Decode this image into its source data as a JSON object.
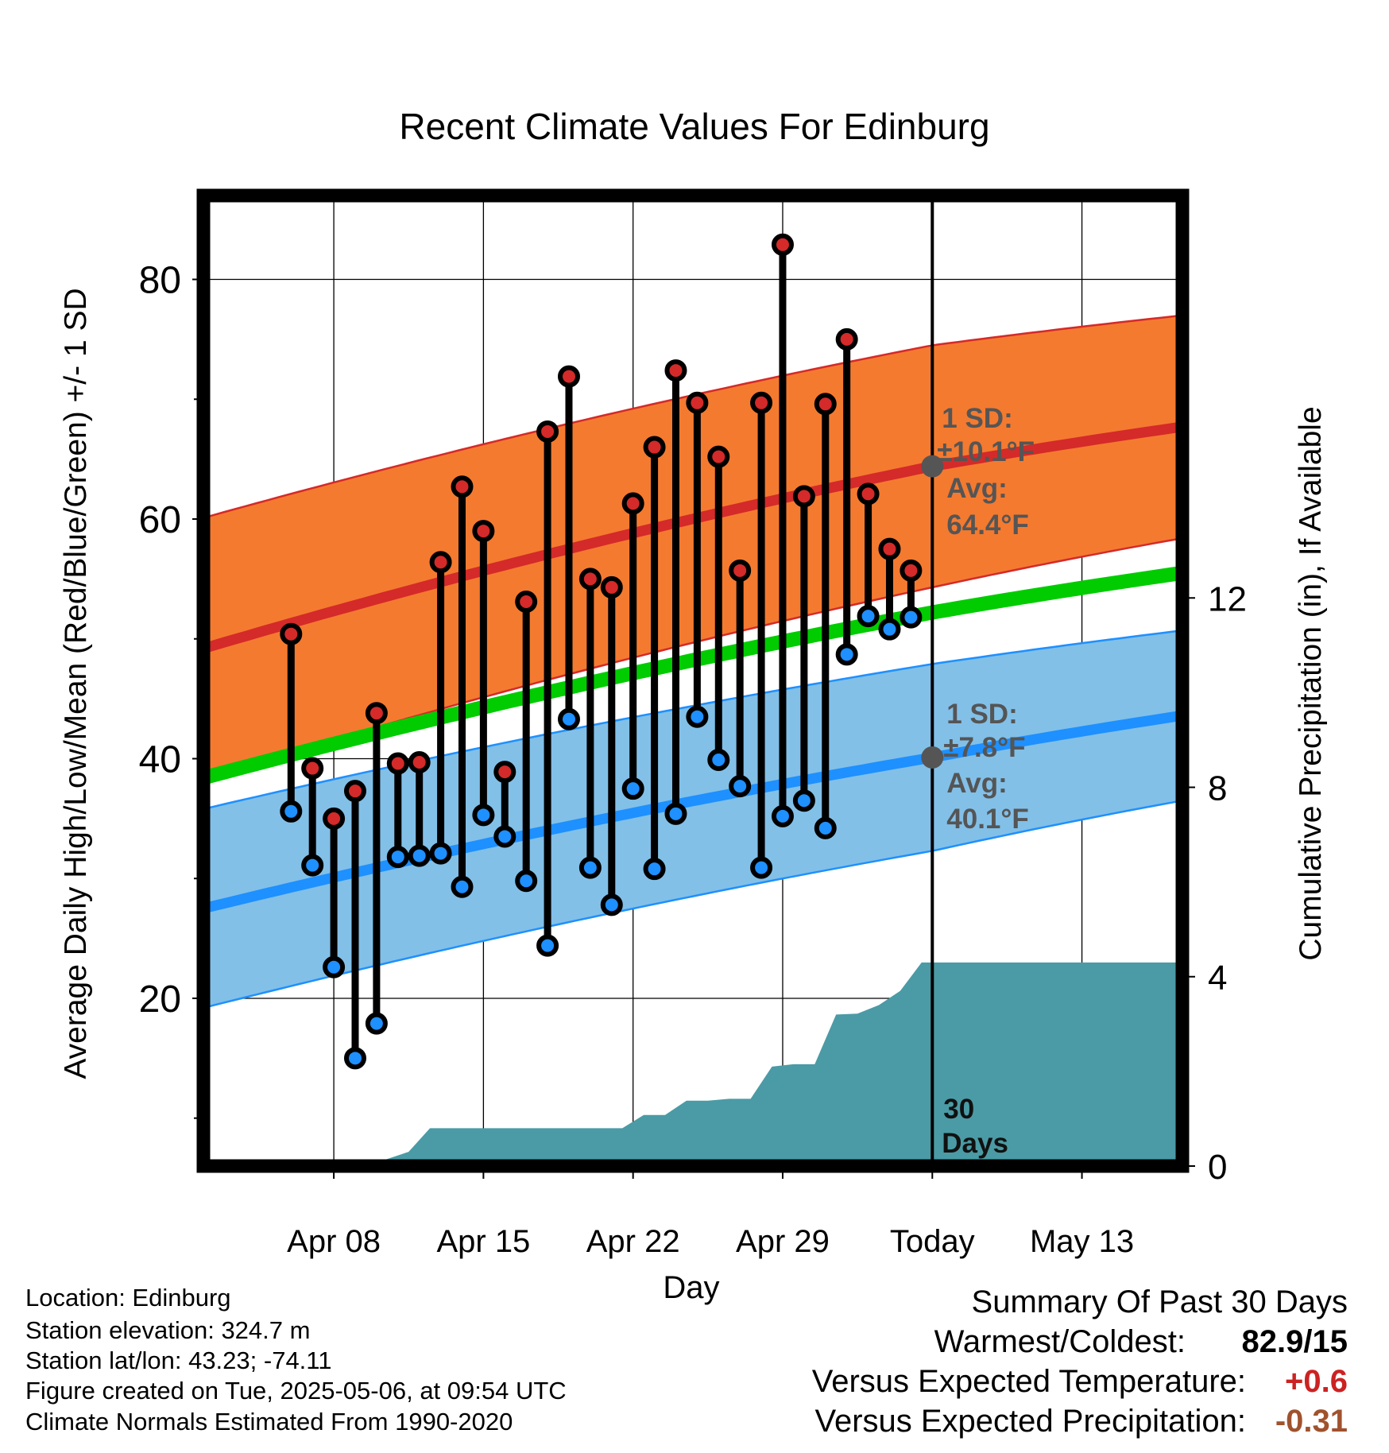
{
  "chart_data": {
    "type": "line",
    "title": "Recent Climate Values For Edinburg",
    "xlabel": "Day",
    "ylabel": "Average Daily High/Low/Mean (Red/Blue/Green) +/- 1 SD",
    "y2label": "Cumulative Precipitation (in), If Available",
    "ylim": [
      6,
      87
    ],
    "y2lim": [
      0,
      20.5
    ],
    "y_ticks": [
      20,
      40,
      60,
      80
    ],
    "y2_ticks": [
      0,
      4,
      8,
      12
    ],
    "x_range_days": [
      -34.1,
      11.7
    ],
    "x_ticks": [
      {
        "day": -28,
        "label": "Apr 08"
      },
      {
        "day": -21,
        "label": "Apr 15"
      },
      {
        "day": -14,
        "label": "Apr 22"
      },
      {
        "day": -7,
        "label": "Apr 29"
      },
      {
        "day": 0,
        "label": "Today"
      },
      {
        "day": 7,
        "label": "May 13"
      }
    ],
    "today_line_day": 0,
    "normals": {
      "x_start": -34.1,
      "x_today": 0,
      "x_end": 11.7,
      "high_mean": [
        49.2,
        64.4,
        67.7
      ],
      "high_sd": [
        10.9,
        10.1,
        9.3
      ],
      "low_mean": [
        27.5,
        40.1,
        43.6
      ],
      "low_sd": [
        8.3,
        7.8,
        7.1
      ],
      "avg_mean": [
        38.4,
        52.2,
        55.5
      ]
    },
    "daily": {
      "days": [
        -30,
        -29,
        -28,
        -27,
        -26,
        -25,
        -24,
        -23,
        -22,
        -21,
        -20,
        -19,
        -18,
        -17,
        -16,
        -15,
        -14,
        -13,
        -12,
        -11,
        -10,
        -9,
        -8,
        -7,
        -6,
        -5,
        -4,
        -3,
        -2,
        -1
      ],
      "highs": [
        50.4,
        39.2,
        35.0,
        37.3,
        43.8,
        39.6,
        39.7,
        56.4,
        62.7,
        59.0,
        38.9,
        53.1,
        67.3,
        71.9,
        55.0,
        54.3,
        61.3,
        66.0,
        72.4,
        69.7,
        65.2,
        55.7,
        69.7,
        82.9,
        61.9,
        69.6,
        75.0,
        62.1,
        57.5,
        55.7
      ],
      "lows": [
        35.6,
        31.1,
        22.6,
        15.0,
        17.9,
        31.8,
        31.9,
        32.1,
        29.3,
        35.3,
        33.5,
        29.8,
        24.4,
        43.3,
        30.9,
        27.8,
        37.5,
        30.8,
        35.4,
        43.5,
        39.9,
        37.7,
        30.9,
        35.2,
        36.5,
        34.2,
        48.7,
        51.9,
        50.8,
        51.8
      ]
    },
    "precipitation": {
      "days": [
        -34.1,
        -26.5,
        -25.5,
        -24.5,
        -23.5,
        -14.5,
        -13.5,
        -12.5,
        -11.5,
        -10.5,
        -9.5,
        -8.5,
        -7.5,
        -6.5,
        -5.5,
        -4.5,
        -3.5,
        -2.5,
        -1.5,
        -0.5,
        0,
        11.7
      ],
      "cumulative_in": [
        0,
        0,
        0.15,
        0.3,
        0.8,
        0.8,
        1.08,
        1.08,
        1.38,
        1.38,
        1.42,
        1.42,
        2.1,
        2.15,
        2.15,
        3.2,
        3.22,
        3.4,
        3.7,
        4.3,
        4.3,
        4.3
      ]
    },
    "annotations": {
      "high_sd_label": "1 SD:",
      "high_sd_value": "±10.1°F",
      "high_avg_label": "Avg:",
      "high_avg_value": "64.4°F",
      "low_sd_label": "1 SD:",
      "low_sd_value": "±7.8°F",
      "low_avg_label": "Avg:",
      "low_avg_value": "40.1°F",
      "days_number": "30",
      "days_word": "Days"
    },
    "grid": true,
    "colors": {
      "high_band": "#f47a30",
      "high_line": "#d42a29",
      "low_band": "#82c0e8",
      "low_line": "#1e90ff",
      "avg_line": "#00cc00",
      "high_dot": "#d42a29",
      "low_dot": "#1e90ff",
      "precip": "#4a9ba5",
      "marker_gray": "#555555",
      "annotation": "#555555"
    }
  },
  "footer": {
    "location": "Location: Edinburg",
    "elevation": "Station elevation: 324.7 m",
    "latlon": "Station lat/lon: 43.23; -74.11",
    "created": "Figure created on Tue, 2025-05-06, at 09:54 UTC",
    "normals": "Climate Normals Estimated From 1990-2020"
  },
  "summary": {
    "title": "Summary Of Past 30 Days",
    "warmest_label": "Warmest/Coldest:",
    "warmest_value": "82.9/15",
    "temp_label": "Versus Expected Temperature:",
    "temp_value": "+0.6",
    "precip_label": "Versus Expected Precipitation:",
    "precip_value": "-0.31",
    "temp_color": "#cc2222",
    "precip_color": "#a0522d"
  }
}
